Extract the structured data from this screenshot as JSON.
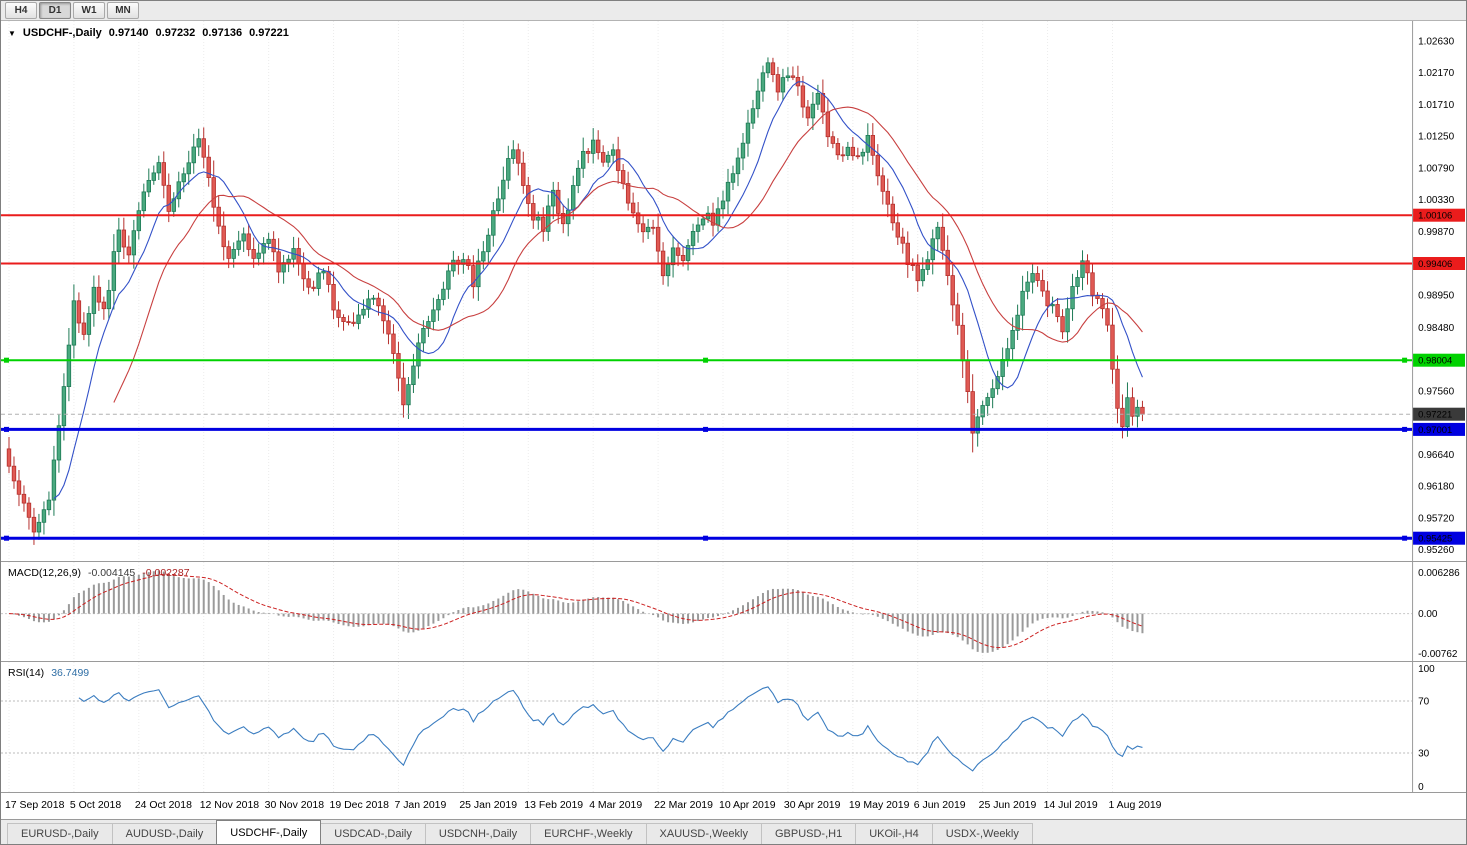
{
  "toolbar": {
    "buttons": [
      {
        "label": "H4",
        "active": false
      },
      {
        "label": "D1",
        "active": true
      },
      {
        "label": "W1",
        "active": false
      },
      {
        "label": "MN",
        "active": false
      }
    ]
  },
  "chart": {
    "title": "USDCHF-,Daily",
    "ohlc": {
      "open": "0.97140",
      "high": "0.97232",
      "low": "0.97136",
      "close": "0.97221"
    },
    "colors": {
      "bull": "#4aa97f",
      "bull_border": "#1d7a55",
      "bear": "#e05a54",
      "bear_border": "#b52f2c",
      "ma_fast": "#3351c8",
      "ma_slow": "#c84040",
      "histogram": "#9a9a9a",
      "signal": "#cc2222",
      "rsi_line": "#3b7dc0",
      "grid": "#ececec",
      "separator": "#9a9a9a",
      "current_line": "#b0b0b0"
    },
    "levels": [
      {
        "price": 1.00106,
        "label": "1.00106",
        "color": "#ea1c1c",
        "width": 2,
        "handles": false
      },
      {
        "price": 0.99406,
        "label": "0.99406",
        "color": "#ea1c1c",
        "width": 2,
        "handles": false
      },
      {
        "price": 0.98004,
        "label": "0.98004",
        "color": "#00d200",
        "width": 2,
        "handles": true
      },
      {
        "price": 0.97001,
        "label": "0.97001",
        "color": "#0000e0",
        "width": 3,
        "handles": true
      },
      {
        "price": 0.95425,
        "label": "0.95425",
        "color": "#0000e0",
        "width": 3,
        "handles": true
      }
    ],
    "current_price": {
      "value": 0.97221,
      "label": "0.97221",
      "badge_color": "#3a3a3a"
    },
    "y_ticks": [
      "1.02630",
      "1.02170",
      "1.01710",
      "1.01250",
      "1.00790",
      "1.00330",
      "0.99870",
      "0.98950",
      "0.98480",
      "0.97560",
      "0.96640",
      "0.96180",
      "0.95720",
      "0.95260"
    ],
    "x_labels": [
      "17 Sep 2018",
      "5 Oct 2018",
      "24 Oct 2018",
      "12 Nov 2018",
      "30 Nov 2018",
      "19 Dec 2018",
      "7 Jan 2019",
      "25 Jan 2019",
      "13 Feb 2019",
      "4 Mar 2019",
      "22 Mar 2019",
      "10 Apr 2019",
      "30 Apr 2019",
      "19 May 2019",
      "6 Jun 2019",
      "25 Jun 2019",
      "14 Jul 2019",
      "1 Aug 2019"
    ]
  },
  "macd": {
    "label": "MACD(12,26,9)",
    "value_main": "-0.004145",
    "value_signal": "-0.002287",
    "axis": [
      "0.006286",
      "0.00",
      "-0.00762"
    ]
  },
  "rsi": {
    "label": "RSI(14)",
    "value": "36.7499",
    "axis": [
      "100",
      "70",
      "30",
      "0"
    ],
    "axis_values": [
      100,
      70,
      30,
      0
    ],
    "levels": [
      70,
      30
    ]
  },
  "tabs": [
    {
      "label": "EURUSD-,Daily",
      "active": false
    },
    {
      "label": "AUDUSD-,Daily",
      "active": false
    },
    {
      "label": "USDCHF-,Daily",
      "active": true
    },
    {
      "label": "USDCAD-,Daily",
      "active": false
    },
    {
      "label": "USDCNH-,Daily",
      "active": false
    },
    {
      "label": "EURCHF-,Weekly",
      "active": false
    },
    {
      "label": "XAUUSD-,Weekly",
      "active": false
    },
    {
      "label": "GBPUSD-,H1",
      "active": false
    },
    {
      "label": "UKOil-,H4",
      "active": false
    },
    {
      "label": "USDX-,Weekly",
      "active": false
    }
  ],
  "chart_data": {
    "type": "candlestick",
    "symbol": "USDCHF",
    "timeframe": "Daily",
    "price_range_visible": {
      "min": 0.9526,
      "max": 1.0263
    },
    "num_candles": 228,
    "tick_step": 13,
    "moving_averages": [
      {
        "period": 10,
        "color": "#3351c8"
      },
      {
        "period": 22,
        "color": "#c84040"
      }
    ],
    "indicators": {
      "macd": {
        "fast": 12,
        "slow": 26,
        "signal": 9
      },
      "rsi": {
        "period": 14
      }
    },
    "close_waypoints": [
      [
        0,
        0.9655
      ],
      [
        2,
        0.96
      ],
      [
        5,
        0.956
      ],
      [
        8,
        0.9598
      ],
      [
        10,
        0.97
      ],
      [
        13,
        0.988
      ],
      [
        15,
        0.9845
      ],
      [
        17,
        0.9905
      ],
      [
        19,
        0.987
      ],
      [
        22,
        0.999
      ],
      [
        24,
        0.9955
      ],
      [
        27,
        1.004
      ],
      [
        30,
        1.0085
      ],
      [
        32,
        1.002
      ],
      [
        35,
        1.0075
      ],
      [
        38,
        1.0125
      ],
      [
        40,
        1.006
      ],
      [
        42,
        0.999
      ],
      [
        44,
        0.9945
      ],
      [
        47,
        0.9985
      ],
      [
        49,
        0.9945
      ],
      [
        52,
        0.9975
      ],
      [
        54,
        0.9935
      ],
      [
        57,
        0.9958
      ],
      [
        60,
        0.9905
      ],
      [
        63,
        0.9928
      ],
      [
        65,
        0.9882
      ],
      [
        68,
        0.9848
      ],
      [
        71,
        0.9872
      ],
      [
        73,
        0.9898
      ],
      [
        75,
        0.9852
      ],
      [
        77,
        0.9812
      ],
      [
        78,
        0.9772
      ],
      [
        79,
        0.9728
      ],
      [
        81,
        0.98
      ],
      [
        83,
        0.9845
      ],
      [
        86,
        0.9888
      ],
      [
        88,
        0.9932
      ],
      [
        91,
        0.9948
      ],
      [
        93,
        0.9915
      ],
      [
        95,
        0.9958
      ],
      [
        97,
        1.0015
      ],
      [
        99,
        1.007
      ],
      [
        101,
        1.0112
      ],
      [
        103,
        1.006
      ],
      [
        105,
        1.0008
      ],
      [
        107,
        0.9992
      ],
      [
        109,
        1.0038
      ],
      [
        111,
        1.0005
      ],
      [
        113,
        1.0045
      ],
      [
        115,
        1.0095
      ],
      [
        117,
        1.0122
      ],
      [
        119,
        1.008
      ],
      [
        121,
        1.0098
      ],
      [
        123,
        1.0048
      ],
      [
        125,
        1.001
      ],
      [
        127,
        0.9978
      ],
      [
        129,
        0.9995
      ],
      [
        131,
        0.9928
      ],
      [
        133,
        0.9962
      ],
      [
        135,
        0.994
      ],
      [
        137,
        0.9992
      ],
      [
        139,
        1.0012
      ],
      [
        141,
        0.9998
      ],
      [
        143,
        1.0035
      ],
      [
        145,
        1.0072
      ],
      [
        147,
        1.0118
      ],
      [
        149,
        1.0168
      ],
      [
        151,
        1.0212
      ],
      [
        152,
        1.0228
      ],
      [
        154,
        1.0185
      ],
      [
        156,
        1.0218
      ],
      [
        158,
        1.0192
      ],
      [
        160,
        1.0155
      ],
      [
        162,
        1.0188
      ],
      [
        164,
        1.0132
      ],
      [
        166,
        1.009
      ],
      [
        168,
        1.0115
      ],
      [
        170,
        1.0092
      ],
      [
        172,
        1.0118
      ],
      [
        174,
        1.0062
      ],
      [
        176,
        1.0018
      ],
      [
        178,
        0.9982
      ],
      [
        180,
        0.9948
      ],
      [
        182,
        0.9918
      ],
      [
        184,
        0.9952
      ],
      [
        186,
        0.9988
      ],
      [
        188,
        0.9922
      ],
      [
        190,
        0.9852
      ],
      [
        192,
        0.9748
      ],
      [
        193,
        0.9695
      ],
      [
        195,
        0.9735
      ],
      [
        197,
        0.9768
      ],
      [
        199,
        0.9802
      ],
      [
        201,
        0.9842
      ],
      [
        203,
        0.9892
      ],
      [
        205,
        0.9922
      ],
      [
        207,
        0.9895
      ],
      [
        209,
        0.9875
      ],
      [
        211,
        0.9842
      ],
      [
        213,
        0.99
      ],
      [
        215,
        0.9945
      ],
      [
        217,
        0.9902
      ],
      [
        219,
        0.988
      ],
      [
        220,
        0.9845
      ],
      [
        221,
        0.9795
      ],
      [
        222,
        0.9738
      ],
      [
        223,
        0.9712
      ],
      [
        224,
        0.974
      ],
      [
        225,
        0.972
      ],
      [
        226,
        0.973
      ],
      [
        227,
        0.97221
      ]
    ]
  }
}
